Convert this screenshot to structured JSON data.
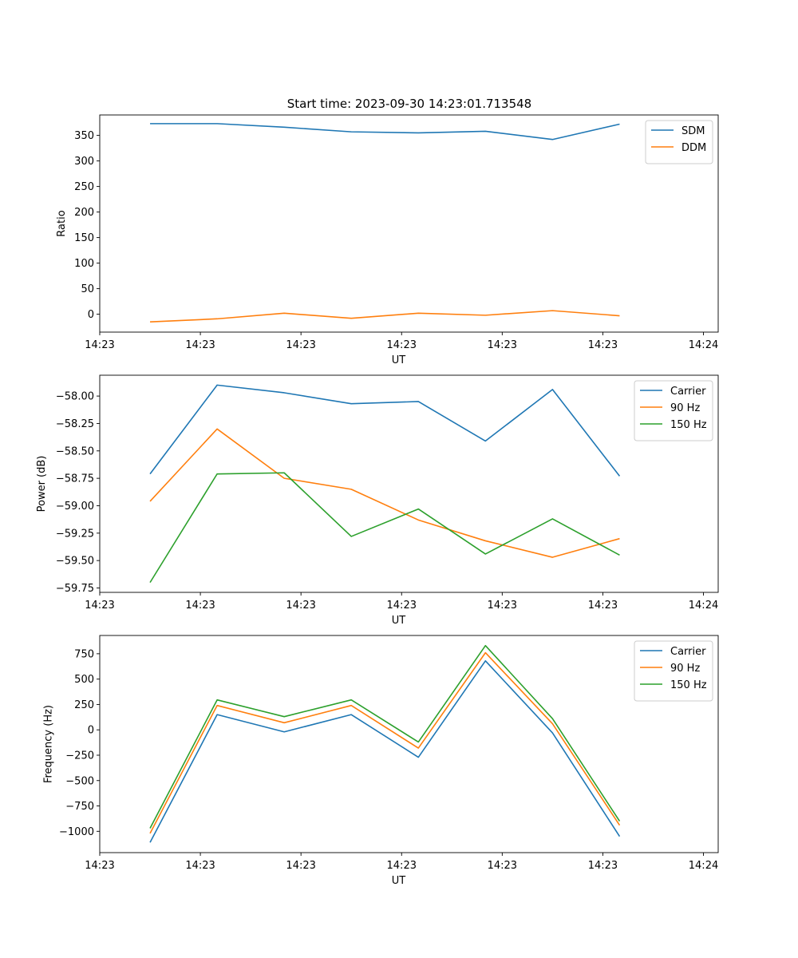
{
  "title": "Start time: 2023-09-30 14:23:01.713548",
  "colors": {
    "blue": "#1f77b4",
    "orange": "#ff7f0e",
    "green": "#2ca02c"
  },
  "chart_data": [
    {
      "type": "line",
      "title": "Start time: 2023-09-30 14:23:01.713548",
      "xlabel": "UT",
      "ylabel": "Ratio",
      "x": [
        0,
        1,
        2,
        3,
        4,
        5,
        6,
        7
      ],
      "xlim": [
        -0.75,
        8.47
      ],
      "xticks": [
        -0.75,
        0.75,
        2.25,
        3.75,
        5.25,
        6.75,
        8.25
      ],
      "xticklabels": [
        "14:23",
        "14:23",
        "14:23",
        "14:23",
        "14:23",
        "14:23",
        "14:24"
      ],
      "ylim": [
        -35,
        390
      ],
      "yticks": [
        0,
        50,
        100,
        150,
        200,
        250,
        300,
        350
      ],
      "yticklabels": [
        "0",
        "50",
        "100",
        "150",
        "200",
        "250",
        "300",
        "350"
      ],
      "legend": "top-right",
      "series": [
        {
          "name": "SDM",
          "color": "#1f77b4",
          "values": [
            373,
            373,
            366,
            357,
            355,
            358,
            342,
            372
          ]
        },
        {
          "name": "DDM",
          "color": "#ff7f0e",
          "values": [
            -15,
            -9,
            2,
            -8,
            2,
            -2,
            7,
            -3
          ]
        }
      ]
    },
    {
      "type": "line",
      "title": "",
      "xlabel": "UT",
      "ylabel": "Power (dB)",
      "x": [
        0,
        1,
        2,
        3,
        4,
        5,
        6,
        7
      ],
      "xlim": [
        -0.75,
        8.47
      ],
      "xticks": [
        -0.75,
        0.75,
        2.25,
        3.75,
        5.25,
        6.75,
        8.25
      ],
      "xticklabels": [
        "14:23",
        "14:23",
        "14:23",
        "14:23",
        "14:23",
        "14:23",
        "14:24"
      ],
      "ylim": [
        -59.79,
        -57.81
      ],
      "yticks": [
        -59.75,
        -59.5,
        -59.25,
        -59.0,
        -58.75,
        -58.5,
        -58.25,
        -58.0
      ],
      "yticklabels": [
        "−59.75",
        "−59.50",
        "−59.25",
        "−59.00",
        "−58.75",
        "−58.50",
        "−58.25",
        "−58.00"
      ],
      "legend": "top-right",
      "series": [
        {
          "name": "Carrier",
          "color": "#1f77b4",
          "values": [
            -58.71,
            -57.9,
            -57.97,
            -58.07,
            -58.05,
            -58.41,
            -57.94,
            -58.73
          ]
        },
        {
          "name": "90 Hz",
          "color": "#ff7f0e",
          "values": [
            -58.96,
            -58.3,
            -58.75,
            -58.85,
            -59.13,
            -59.32,
            -59.47,
            -59.3
          ]
        },
        {
          "name": "150 Hz",
          "color": "#2ca02c",
          "values": [
            -59.7,
            -58.71,
            -58.7,
            -59.28,
            -59.03,
            -59.44,
            -59.12,
            -59.45
          ]
        }
      ]
    },
    {
      "type": "line",
      "title": "",
      "xlabel": "UT",
      "ylabel": "Frequency (Hz)",
      "x": [
        0,
        1,
        2,
        3,
        4,
        5,
        6,
        7
      ],
      "xlim": [
        -0.75,
        8.47
      ],
      "xticks": [
        -0.75,
        0.75,
        2.25,
        3.75,
        5.25,
        6.75,
        8.25
      ],
      "xticklabels": [
        "14:23",
        "14:23",
        "14:23",
        "14:23",
        "14:23",
        "14:23",
        "14:24"
      ],
      "ylim": [
        -1210,
        930
      ],
      "yticks": [
        -1000,
        -750,
        -500,
        -250,
        0,
        250,
        500,
        750
      ],
      "yticklabels": [
        "−1000",
        "−750",
        "−500",
        "−250",
        "0",
        "250",
        "500",
        "750"
      ],
      "legend": "top-right",
      "series": [
        {
          "name": "Carrier",
          "color": "#1f77b4",
          "values": [
            -1110,
            150,
            -20,
            150,
            -270,
            680,
            -30,
            -1050
          ]
        },
        {
          "name": "90 Hz",
          "color": "#ff7f0e",
          "values": [
            -1020,
            240,
            70,
            240,
            -180,
            760,
            60,
            -940
          ]
        },
        {
          "name": "150 Hz",
          "color": "#2ca02c",
          "values": [
            -970,
            295,
            130,
            295,
            -120,
            830,
            110,
            -900
          ]
        }
      ]
    }
  ]
}
